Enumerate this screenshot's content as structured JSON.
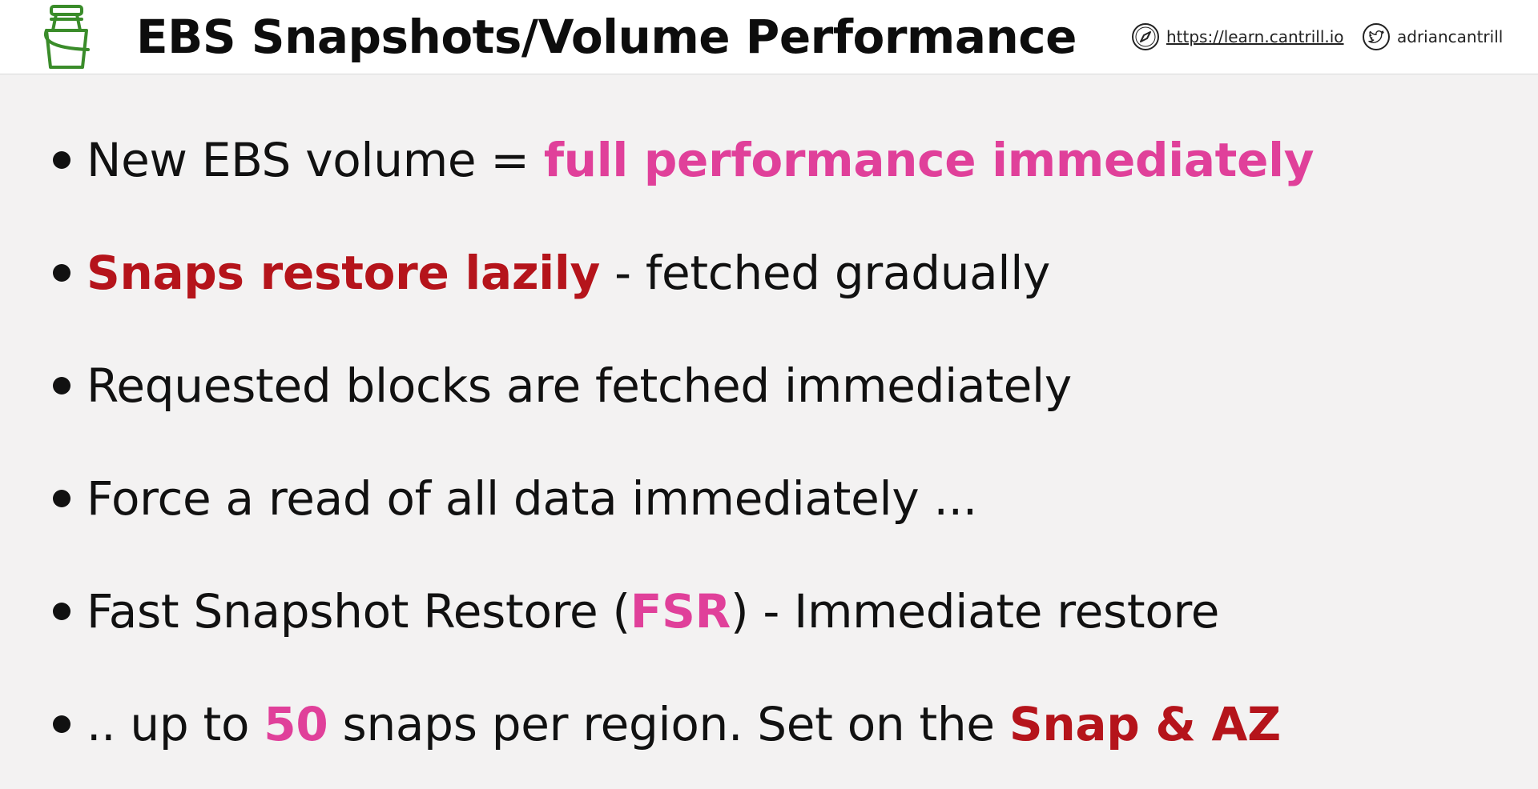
{
  "header": {
    "title": "EBS Snapshots/Volume Performance",
    "website": "https://learn.cantrill.io",
    "twitter": "adriancantrill",
    "logo_icon": "ebs-bucket-icon",
    "website_icon": "compass-icon",
    "twitter_icon": "twitter-bird-icon",
    "logo_color": "#3a8c2a"
  },
  "colors": {
    "pink": "#e0409a",
    "red": "#b5141b"
  },
  "bullets": [
    {
      "parts": [
        "New EBS volume = ",
        "full performance immediately"
      ]
    },
    {
      "parts": [
        "Snaps restore lazily",
        " - fetched gradually"
      ]
    },
    {
      "parts": [
        "Requested blocks are fetched immediately"
      ]
    },
    {
      "parts": [
        "Force a read of all data immediately ..."
      ]
    },
    {
      "parts": [
        "Fast Snapshot Restore (",
        "FSR",
        ") - Immediate restore"
      ]
    },
    {
      "parts": [
        ".. up to ",
        "50",
        " snaps per region. Set on the ",
        "Snap & AZ"
      ]
    }
  ]
}
